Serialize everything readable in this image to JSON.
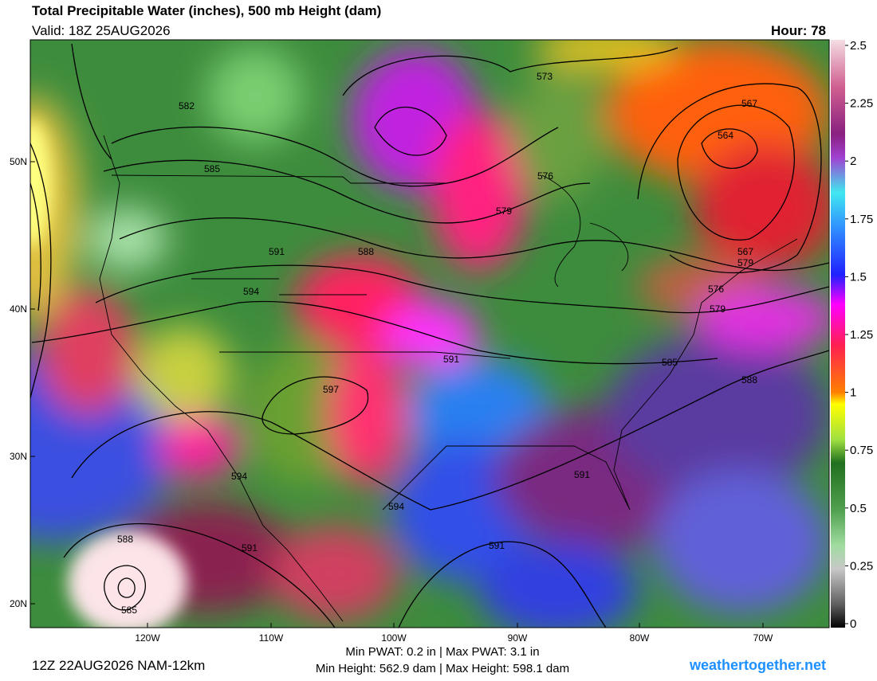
{
  "header": {
    "title": "Total Precipitable Water (inches), 500 mb Height (dam)",
    "valid": "Valid: 18Z 25AUG2026",
    "hour": "Hour: 78"
  },
  "map": {
    "lat_labels": [
      "50N",
      "40N",
      "30N",
      "20N"
    ],
    "lon_labels": [
      "120W",
      "110W",
      "100W",
      "90W",
      "80W",
      "70W"
    ],
    "contour_labels": [
      "573",
      "582",
      "585",
      "576",
      "579",
      "567",
      "564",
      "591",
      "588",
      "594",
      "567",
      "579",
      "576",
      "579",
      "591",
      "585",
      "588",
      "597",
      "594",
      "591",
      "594",
      "591",
      "588",
      "591",
      "585"
    ]
  },
  "colorbar": {
    "lim": [
      0,
      2.5
    ],
    "ticks": [
      2.5,
      2.25,
      2,
      1.75,
      1.5,
      1.25,
      1,
      0.75,
      0.5,
      0.25,
      0
    ]
  },
  "footer": {
    "run": "12Z 22AUG2026 NAM-12km",
    "pwat": "Min PWAT:   0.2 in | Max PWAT:   3.1 in",
    "height": "Min Height: 562.9 dam | Max Height: 598.1 dam",
    "site": "weathertogether.net"
  }
}
